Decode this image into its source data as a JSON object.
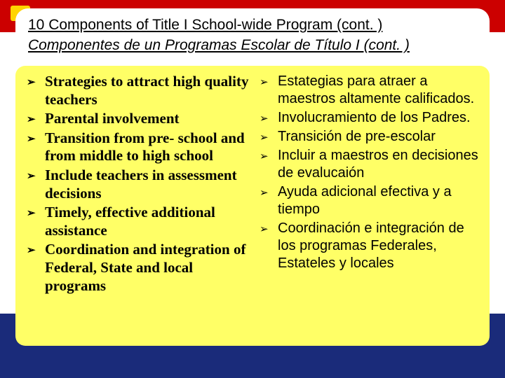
{
  "colors": {
    "red": "#cc0000",
    "blue": "#1a2b7a",
    "yellow_box": "#ffff66",
    "yellow_chip": "#ffd400",
    "white": "#ffffff",
    "text": "#000000"
  },
  "title": {
    "en": "10 Components of Title I School-wide Program (cont. )",
    "es": "Componentes de un Programas Escolar de Título I  (cont. )"
  },
  "bullet_glyph": "➢",
  "left_column": {
    "font_family": "Times New Roman",
    "font_weight": "bold",
    "items": [
      "Strategies to attract high quality teachers",
      "Parental involvement",
      "Transition from pre- school and from middle to high school",
      "Include teachers in assessment decisions",
      "Timely, effective additional assistance",
      " Coordination and integration of Federal, State and local programs"
    ]
  },
  "right_column": {
    "font_family": "Arial",
    "font_weight": "normal",
    "items": [
      "Estategias para atraer a maestros altamente calificados.",
      "Involucramiento de los Padres.",
      "Transición de pre-escolar",
      "Incluir a maestros en decisiones de evalucaión",
      "Ayuda adicional efectiva y a tiempo",
      " Coordinación e integración de los programas Federales, Estateles y  locales"
    ]
  }
}
